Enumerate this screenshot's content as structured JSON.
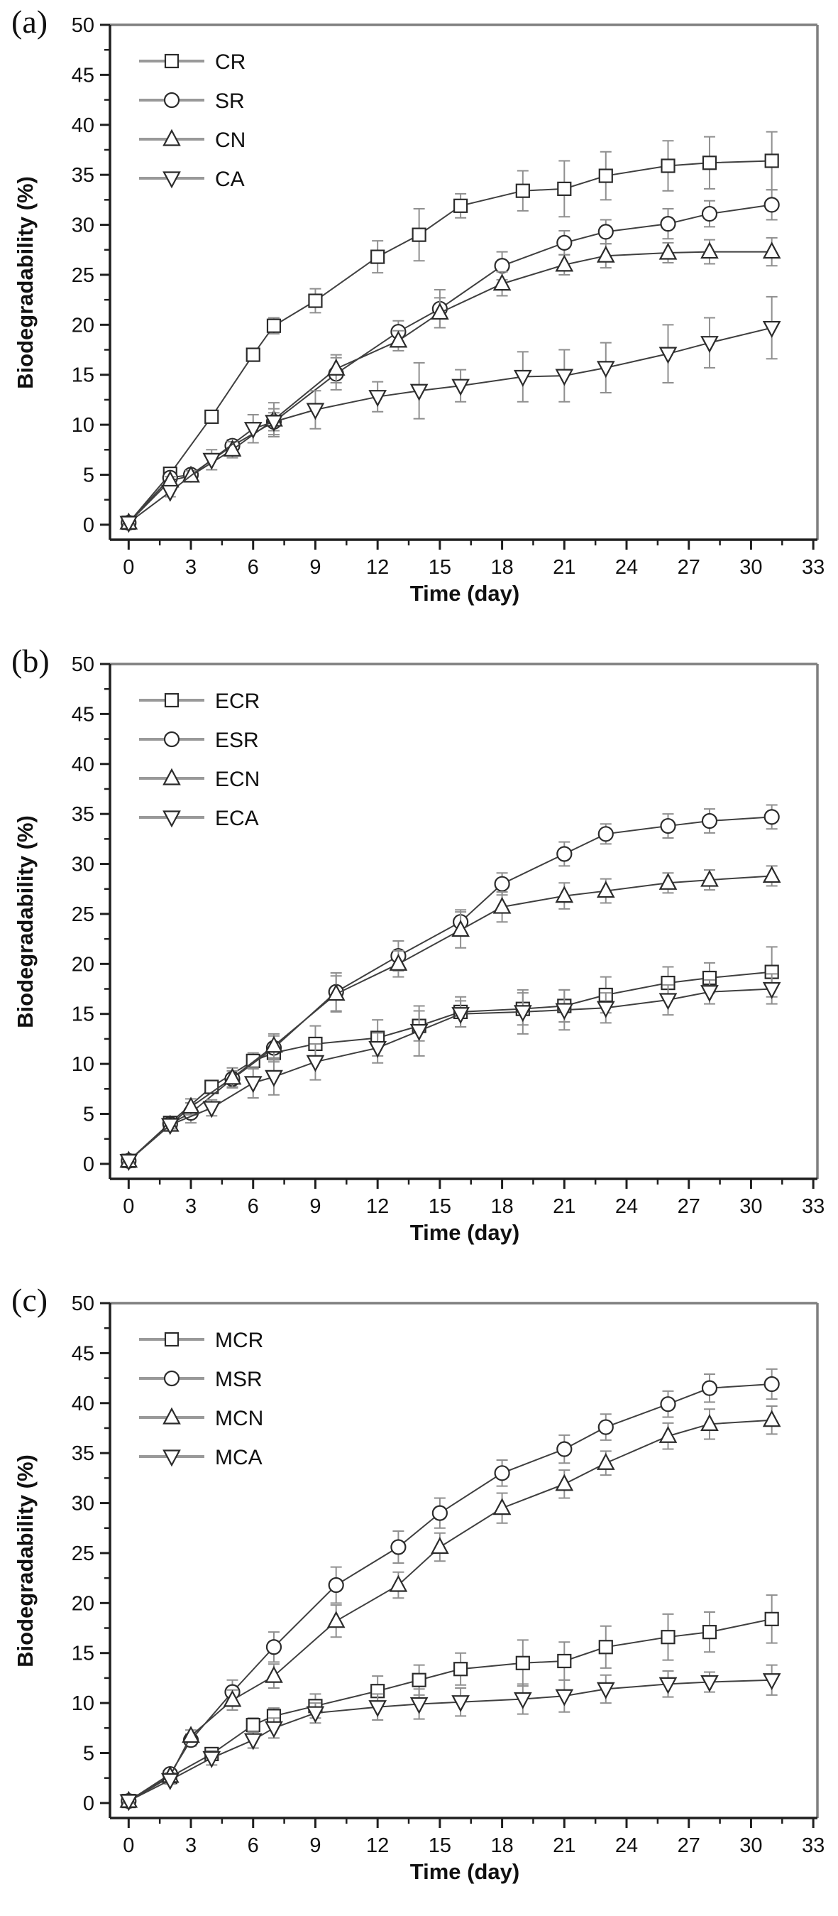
{
  "figure": {
    "background": "#ffffff",
    "colors": {
      "series_line": "#3f3f3f",
      "marker_stroke": "#2b2b2b",
      "marker_fill": "#ffffff",
      "error_bar": "#8f8f8f",
      "axis_dark": "#1f1f1f",
      "axis_light": "#7f7f7f",
      "text": "#111111",
      "legend_line": "#999999"
    }
  },
  "chart_data": [
    {
      "type": "line",
      "panel_label": "(a)",
      "title": "",
      "xlabel": "Time (day)",
      "ylabel": "Biodegradability (%)",
      "xlim": [
        0,
        33
      ],
      "ylim": [
        0,
        50
      ],
      "x_tick_step": 3,
      "y_tick_step": 5,
      "x_minor_step": 1.5,
      "y_minor_step": 2.5,
      "grid": false,
      "legend_position": "top-left",
      "legend": [
        "CR",
        "SR",
        "CN",
        "CA"
      ],
      "series": [
        {
          "name": "CR",
          "marker": "square",
          "x": [
            0,
            2,
            4,
            6,
            7,
            9,
            12,
            14,
            16,
            19,
            21,
            23,
            26,
            28,
            31
          ],
          "y": [
            0.2,
            5.1,
            10.8,
            17.0,
            19.9,
            22.4,
            26.8,
            29.0,
            31.9,
            33.4,
            33.6,
            34.9,
            35.9,
            36.2,
            36.4
          ],
          "yerr": [
            0.2,
            0.4,
            0.5,
            0.6,
            0.8,
            1.2,
            1.6,
            2.6,
            1.2,
            2.0,
            2.8,
            2.4,
            2.5,
            2.6,
            2.9
          ]
        },
        {
          "name": "SR",
          "marker": "circle",
          "x": [
            0,
            2,
            3,
            5,
            7,
            10,
            13,
            15,
            18,
            21,
            23,
            26,
            28,
            31
          ],
          "y": [
            0.2,
            4.7,
            5.0,
            7.9,
            10.3,
            15.1,
            19.3,
            21.6,
            25.9,
            28.2,
            29.3,
            30.1,
            31.1,
            32.0
          ],
          "yerr": [
            0.2,
            0.4,
            0.5,
            0.6,
            0.9,
            1.6,
            1.1,
            1.9,
            1.4,
            1.2,
            1.2,
            1.5,
            1.3,
            1.5
          ]
        },
        {
          "name": "CN",
          "marker": "triangle-up",
          "x": [
            0,
            2,
            3,
            5,
            7,
            10,
            13,
            15,
            18,
            21,
            23,
            26,
            28,
            31
          ],
          "y": [
            0.2,
            4.4,
            4.9,
            7.5,
            10.5,
            15.6,
            18.4,
            21.2,
            24.1,
            26.0,
            26.9,
            27.2,
            27.3,
            27.3
          ],
          "yerr": [
            0.2,
            0.4,
            0.5,
            0.8,
            1.7,
            1.4,
            1.0,
            1.5,
            1.2,
            1.0,
            1.2,
            1.0,
            1.2,
            1.4
          ]
        },
        {
          "name": "CA",
          "marker": "triangle-down",
          "x": [
            0,
            2,
            4,
            6,
            7,
            9,
            12,
            14,
            16,
            19,
            21,
            23,
            26,
            28,
            31
          ],
          "y": [
            0.2,
            3.3,
            6.5,
            9.6,
            10.3,
            11.5,
            12.8,
            13.4,
            13.9,
            14.8,
            14.9,
            15.7,
            17.1,
            18.2,
            19.7
          ],
          "yerr": [
            0.2,
            0.5,
            1.0,
            1.4,
            1.3,
            1.9,
            1.5,
            2.8,
            1.6,
            2.5,
            2.6,
            2.5,
            2.9,
            2.5,
            3.1
          ]
        }
      ]
    },
    {
      "type": "line",
      "panel_label": "(b)",
      "title": "",
      "xlabel": "Time (day)",
      "ylabel": "Biodegradability (%)",
      "xlim": [
        0,
        33
      ],
      "ylim": [
        0,
        50
      ],
      "x_tick_step": 3,
      "y_tick_step": 5,
      "x_minor_step": 1.5,
      "y_minor_step": 2.5,
      "grid": false,
      "legend_position": "top-left",
      "legend": [
        "ECR",
        "ESR",
        "ECN",
        "ECA"
      ],
      "series": [
        {
          "name": "ECR",
          "marker": "square",
          "x": [
            0,
            2,
            4,
            6,
            7,
            9,
            12,
            14,
            16,
            19,
            21,
            23,
            26,
            28,
            31
          ],
          "y": [
            0.3,
            4.1,
            7.7,
            10.3,
            11.1,
            12.0,
            12.6,
            13.8,
            15.2,
            15.5,
            15.8,
            16.9,
            18.1,
            18.6,
            19.2
          ],
          "yerr": [
            0.2,
            0.4,
            0.6,
            0.8,
            0.9,
            1.8,
            1.8,
            1.5,
            1.5,
            1.6,
            1.6,
            1.8,
            1.6,
            1.5,
            2.5
          ]
        },
        {
          "name": "ESR",
          "marker": "circle",
          "x": [
            0,
            2,
            3,
            5,
            7,
            10,
            13,
            16,
            18,
            21,
            23,
            26,
            28,
            31
          ],
          "y": [
            0.3,
            4.0,
            5.1,
            8.5,
            11.6,
            17.2,
            20.8,
            24.2,
            28.0,
            31.0,
            33.0,
            33.8,
            34.3,
            34.7
          ],
          "yerr": [
            0.2,
            0.4,
            1.0,
            0.8,
            1.2,
            1.9,
            1.5,
            1.2,
            1.1,
            1.2,
            1.0,
            1.2,
            1.2,
            1.2
          ]
        },
        {
          "name": "ECN",
          "marker": "triangle-up",
          "x": [
            0,
            2,
            3,
            5,
            7,
            10,
            13,
            16,
            18,
            21,
            23,
            26,
            28,
            31
          ],
          "y": [
            0.3,
            3.9,
            5.7,
            8.6,
            11.8,
            17.0,
            20.0,
            23.4,
            25.7,
            26.8,
            27.3,
            28.1,
            28.4,
            28.8
          ],
          "yerr": [
            0.2,
            0.4,
            0.8,
            1.0,
            1.2,
            1.8,
            1.3,
            1.8,
            1.5,
            1.3,
            1.2,
            1.0,
            1.0,
            1.0
          ]
        },
        {
          "name": "ECA",
          "marker": "triangle-down",
          "x": [
            0,
            2,
            4,
            6,
            7,
            9,
            12,
            14,
            16,
            19,
            21,
            23,
            26,
            28,
            31
          ],
          "y": [
            0.3,
            3.9,
            5.6,
            8.1,
            8.7,
            10.2,
            11.6,
            13.3,
            15.0,
            15.2,
            15.4,
            15.6,
            16.4,
            17.2,
            17.5
          ],
          "yerr": [
            0.2,
            0.4,
            0.8,
            1.5,
            1.8,
            1.8,
            1.5,
            2.5,
            1.3,
            2.2,
            2.0,
            1.5,
            1.5,
            1.2,
            1.5
          ]
        }
      ]
    },
    {
      "type": "line",
      "panel_label": "(c)",
      "title": "",
      "xlabel": "Time (day)",
      "ylabel": "Biodegradability (%)",
      "xlim": [
        0,
        33
      ],
      "ylim": [
        0,
        50
      ],
      "x_tick_step": 3,
      "y_tick_step": 5,
      "x_minor_step": 1.5,
      "y_minor_step": 2.5,
      "grid": false,
      "legend_position": "top-left",
      "legend": [
        "MCR",
        "MSR",
        "MCN",
        "MCA"
      ],
      "series": [
        {
          "name": "MCR",
          "marker": "square",
          "x": [
            0,
            2,
            4,
            6,
            7,
            9,
            12,
            14,
            16,
            19,
            21,
            23,
            26,
            28,
            31
          ],
          "y": [
            0.2,
            2.6,
            4.9,
            7.8,
            8.7,
            9.7,
            11.2,
            12.3,
            13.4,
            14.0,
            14.2,
            15.6,
            16.6,
            17.1,
            18.4
          ],
          "yerr": [
            0.2,
            0.4,
            0.6,
            0.7,
            0.8,
            1.2,
            1.5,
            1.5,
            1.6,
            2.3,
            1.9,
            2.1,
            2.3,
            2.0,
            2.4
          ]
        },
        {
          "name": "MSR",
          "marker": "circle",
          "x": [
            0,
            2,
            3,
            5,
            7,
            10,
            13,
            15,
            18,
            21,
            23,
            26,
            28,
            31
          ],
          "y": [
            0.2,
            2.9,
            6.3,
            11.1,
            15.6,
            21.8,
            25.6,
            29.0,
            33.0,
            35.4,
            37.6,
            39.9,
            41.5,
            41.9
          ],
          "yerr": [
            0.2,
            0.3,
            0.6,
            1.2,
            1.5,
            1.8,
            1.6,
            1.5,
            1.3,
            1.4,
            1.3,
            1.3,
            1.4,
            1.5
          ]
        },
        {
          "name": "MCN",
          "marker": "triangle-up",
          "x": [
            0,
            2,
            3,
            5,
            7,
            10,
            13,
            15,
            18,
            21,
            23,
            26,
            28,
            31
          ],
          "y": [
            0.2,
            2.7,
            6.7,
            10.3,
            12.7,
            18.2,
            21.8,
            25.6,
            29.5,
            31.9,
            34.0,
            36.7,
            37.9,
            38.3
          ],
          "yerr": [
            0.2,
            0.3,
            0.6,
            1.0,
            1.2,
            1.6,
            1.3,
            1.4,
            1.5,
            1.4,
            1.2,
            1.3,
            1.5,
            1.4
          ]
        },
        {
          "name": "MCA",
          "marker": "triangle-down",
          "x": [
            0,
            2,
            4,
            6,
            7,
            9,
            12,
            14,
            16,
            19,
            21,
            23,
            26,
            28,
            31
          ],
          "y": [
            0.2,
            2.3,
            4.5,
            6.3,
            7.5,
            9.0,
            9.6,
            9.9,
            10.1,
            10.4,
            10.7,
            11.4,
            11.9,
            12.1,
            12.3
          ],
          "yerr": [
            0.2,
            0.4,
            0.7,
            0.8,
            1.0,
            1.0,
            1.3,
            1.5,
            1.4,
            1.5,
            1.6,
            1.4,
            1.3,
            1.0,
            1.5
          ]
        }
      ]
    }
  ]
}
